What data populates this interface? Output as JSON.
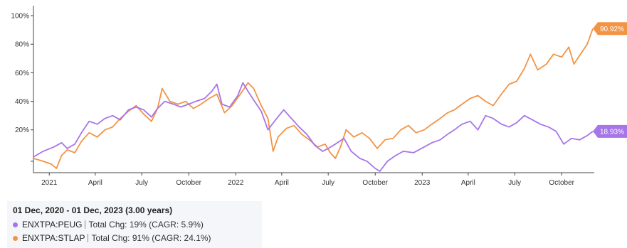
{
  "chart_data": {
    "type": "line",
    "range_label": "01 Dec, 2020 - 01 Dec, 2023 (3.00 years)",
    "x_start": "2020-12-01",
    "x_end": "2023-12-01",
    "x_ticks": [
      {
        "date": "2021-01-01",
        "label": "2021"
      },
      {
        "date": "2021-04-01",
        "label": "April"
      },
      {
        "date": "2021-07-01",
        "label": "July"
      },
      {
        "date": "2021-10-01",
        "label": "October"
      },
      {
        "date": "2022-01-01",
        "label": "2022"
      },
      {
        "date": "2022-04-01",
        "label": "April"
      },
      {
        "date": "2022-07-01",
        "label": "July"
      },
      {
        "date": "2022-10-01",
        "label": "October"
      },
      {
        "date": "2023-01-01",
        "label": "2023"
      },
      {
        "date": "2023-04-01",
        "label": "April"
      },
      {
        "date": "2023-07-01",
        "label": "July"
      },
      {
        "date": "2023-10-01",
        "label": "October"
      }
    ],
    "y_ticks": [
      20,
      40,
      60,
      80,
      100
    ],
    "y_tick_labels": [
      "20%",
      "40%",
      "60%",
      "80%",
      "100%"
    ],
    "ylim": [
      -10,
      105
    ],
    "grid": false,
    "series": [
      {
        "name": "ENXTPA:PEUG",
        "color": "#a775e8",
        "end_label": "18.93%",
        "stat": "Total Chg: 19% (CAGR: 5.9%)",
        "points": [
          [
            "2020-12-01",
            1
          ],
          [
            "2020-12-20",
            5
          ],
          [
            "2021-01-10",
            8
          ],
          [
            "2021-01-25",
            11
          ],
          [
            "2021-02-05",
            7
          ],
          [
            "2021-02-20",
            10
          ],
          [
            "2021-03-05",
            18
          ],
          [
            "2021-03-20",
            26
          ],
          [
            "2021-04-05",
            24
          ],
          [
            "2021-04-20",
            28
          ],
          [
            "2021-05-05",
            30
          ],
          [
            "2021-05-20",
            27
          ],
          [
            "2021-06-05",
            34
          ],
          [
            "2021-06-20",
            36
          ],
          [
            "2021-07-05",
            34
          ],
          [
            "2021-07-20",
            29
          ],
          [
            "2021-08-01",
            35
          ],
          [
            "2021-08-15",
            40
          ],
          [
            "2021-09-01",
            38
          ],
          [
            "2021-09-15",
            36
          ],
          [
            "2021-10-01",
            38
          ],
          [
            "2021-10-15",
            40
          ],
          [
            "2021-11-01",
            42
          ],
          [
            "2021-11-15",
            47
          ],
          [
            "2021-11-25",
            52
          ],
          [
            "2021-12-05",
            38
          ],
          [
            "2021-12-20",
            36
          ],
          [
            "2022-01-05",
            44
          ],
          [
            "2022-01-15",
            53
          ],
          [
            "2022-01-25",
            47
          ],
          [
            "2022-02-05",
            41
          ],
          [
            "2022-02-20",
            33
          ],
          [
            "2022-03-05",
            20
          ],
          [
            "2022-03-20",
            27
          ],
          [
            "2022-04-05",
            34
          ],
          [
            "2022-04-20",
            28
          ],
          [
            "2022-05-05",
            22
          ],
          [
            "2022-05-20",
            17
          ],
          [
            "2022-06-05",
            9
          ],
          [
            "2022-06-20",
            5
          ],
          [
            "2022-07-01",
            7
          ],
          [
            "2022-07-15",
            10
          ],
          [
            "2022-08-01",
            14
          ],
          [
            "2022-08-15",
            5
          ],
          [
            "2022-09-01",
            0
          ],
          [
            "2022-09-15",
            -2
          ],
          [
            "2022-10-01",
            -7
          ],
          [
            "2022-10-10",
            -9
          ],
          [
            "2022-10-25",
            -2
          ],
          [
            "2022-11-10",
            2
          ],
          [
            "2022-11-25",
            5
          ],
          [
            "2022-12-15",
            4
          ],
          [
            "2023-01-05",
            8
          ],
          [
            "2023-01-20",
            11
          ],
          [
            "2023-02-05",
            13
          ],
          [
            "2023-02-20",
            17
          ],
          [
            "2023-03-05",
            20
          ],
          [
            "2023-03-20",
            24
          ],
          [
            "2023-04-05",
            26
          ],
          [
            "2023-04-20",
            20
          ],
          [
            "2023-05-05",
            30
          ],
          [
            "2023-05-20",
            28
          ],
          [
            "2023-06-05",
            24
          ],
          [
            "2023-06-20",
            22
          ],
          [
            "2023-07-05",
            25
          ],
          [
            "2023-07-20",
            30
          ],
          [
            "2023-08-05",
            27
          ],
          [
            "2023-08-20",
            24
          ],
          [
            "2023-09-05",
            22
          ],
          [
            "2023-09-20",
            19
          ],
          [
            "2023-10-05",
            10
          ],
          [
            "2023-10-20",
            14
          ],
          [
            "2023-11-05",
            13
          ],
          [
            "2023-11-20",
            16
          ],
          [
            "2023-12-01",
            18.93
          ]
        ]
      },
      {
        "name": "ENXTPA:STLAP",
        "color": "#f29445",
        "end_label": "90.92%",
        "stat": "Total Chg: 91% (CAGR: 24.1%)",
        "points": [
          [
            "2020-12-01",
            0
          ],
          [
            "2020-12-20",
            -2
          ],
          [
            "2021-01-05",
            -4
          ],
          [
            "2021-01-15",
            -7
          ],
          [
            "2021-01-25",
            2
          ],
          [
            "2021-02-05",
            6
          ],
          [
            "2021-02-20",
            4
          ],
          [
            "2021-03-05",
            12
          ],
          [
            "2021-03-20",
            18
          ],
          [
            "2021-04-05",
            15
          ],
          [
            "2021-04-20",
            20
          ],
          [
            "2021-05-05",
            22
          ],
          [
            "2021-05-20",
            28
          ],
          [
            "2021-06-05",
            33
          ],
          [
            "2021-06-20",
            37
          ],
          [
            "2021-07-05",
            31
          ],
          [
            "2021-07-20",
            26
          ],
          [
            "2021-08-01",
            35
          ],
          [
            "2021-08-10",
            49
          ],
          [
            "2021-08-25",
            40
          ],
          [
            "2021-09-10",
            38
          ],
          [
            "2021-09-25",
            40
          ],
          [
            "2021-10-10",
            35
          ],
          [
            "2021-10-25",
            38
          ],
          [
            "2021-11-10",
            42
          ],
          [
            "2021-11-25",
            45
          ],
          [
            "2021-12-10",
            32
          ],
          [
            "2021-12-25",
            37
          ],
          [
            "2022-01-10",
            45
          ],
          [
            "2022-01-25",
            53
          ],
          [
            "2022-02-05",
            49
          ],
          [
            "2022-02-20",
            37
          ],
          [
            "2022-03-05",
            28
          ],
          [
            "2022-03-15",
            5
          ],
          [
            "2022-03-25",
            15
          ],
          [
            "2022-04-10",
            21
          ],
          [
            "2022-04-25",
            23
          ],
          [
            "2022-05-10",
            17
          ],
          [
            "2022-05-25",
            13
          ],
          [
            "2022-06-10",
            8
          ],
          [
            "2022-06-25",
            10
          ],
          [
            "2022-07-05",
            4
          ],
          [
            "2022-07-15",
            0
          ],
          [
            "2022-07-25",
            8
          ],
          [
            "2022-08-05",
            20
          ],
          [
            "2022-08-20",
            15
          ],
          [
            "2022-09-05",
            18
          ],
          [
            "2022-09-20",
            14
          ],
          [
            "2022-10-05",
            7
          ],
          [
            "2022-10-20",
            13
          ],
          [
            "2022-11-05",
            14
          ],
          [
            "2022-11-20",
            20
          ],
          [
            "2022-12-05",
            23
          ],
          [
            "2022-12-20",
            18
          ],
          [
            "2023-01-05",
            20
          ],
          [
            "2023-01-20",
            24
          ],
          [
            "2023-02-05",
            28
          ],
          [
            "2023-02-20",
            32
          ],
          [
            "2023-03-05",
            34
          ],
          [
            "2023-03-20",
            38
          ],
          [
            "2023-04-05",
            42
          ],
          [
            "2023-04-20",
            44
          ],
          [
            "2023-05-05",
            40
          ],
          [
            "2023-05-20",
            37
          ],
          [
            "2023-06-05",
            45
          ],
          [
            "2023-06-20",
            52
          ],
          [
            "2023-07-05",
            54
          ],
          [
            "2023-07-20",
            63
          ],
          [
            "2023-08-01",
            73
          ],
          [
            "2023-08-15",
            62
          ],
          [
            "2023-09-01",
            66
          ],
          [
            "2023-09-15",
            73
          ],
          [
            "2023-10-01",
            71
          ],
          [
            "2023-10-15",
            78
          ],
          [
            "2023-10-25",
            66
          ],
          [
            "2023-11-05",
            72
          ],
          [
            "2023-11-20",
            80
          ],
          [
            "2023-12-01",
            90.92
          ]
        ]
      }
    ]
  }
}
